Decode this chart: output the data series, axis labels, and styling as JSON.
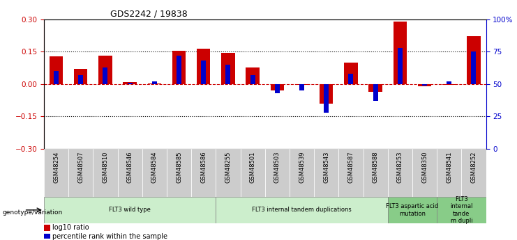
{
  "title": "GDS2242 / 19838",
  "samples": [
    "GSM48254",
    "GSM48507",
    "GSM48510",
    "GSM48546",
    "GSM48584",
    "GSM48585",
    "GSM48586",
    "GSM48255",
    "GSM48501",
    "GSM48503",
    "GSM48539",
    "GSM48543",
    "GSM48587",
    "GSM48588",
    "GSM48253",
    "GSM48350",
    "GSM48541",
    "GSM48252"
  ],
  "log10_ratio": [
    0.127,
    0.07,
    0.13,
    0.01,
    0.003,
    0.155,
    0.165,
    0.143,
    0.075,
    -0.03,
    -0.005,
    -0.09,
    0.1,
    -0.035,
    0.29,
    -0.01,
    -0.005,
    0.22
  ],
  "percentile_rank": [
    60,
    57,
    63,
    51,
    52,
    72,
    68,
    65,
    57,
    43,
    45,
    28,
    58,
    37,
    78,
    49,
    52,
    75
  ],
  "ylim_left": [
    -0.3,
    0.3
  ],
  "ylim_right": [
    0,
    100
  ],
  "yticks_left": [
    -0.3,
    -0.15,
    0.0,
    0.15,
    0.3
  ],
  "yticks_right": [
    0,
    25,
    50,
    75,
    100
  ],
  "ytick_labels_right": [
    "0",
    "25",
    "50",
    "75",
    "100%"
  ],
  "hline_vals": [
    0.15,
    -0.15
  ],
  "red_color": "#cc0000",
  "blue_color": "#0000cc",
  "groups": [
    {
      "label": "FLT3 wild type",
      "start": 0,
      "end": 6,
      "color": "#cceecc"
    },
    {
      "label": "FLT3 internal tandem duplications",
      "start": 7,
      "end": 13,
      "color": "#cceecc"
    },
    {
      "label": "FLT3 aspartic acid\nmutation",
      "start": 14,
      "end": 15,
      "color": "#88cc88"
    },
    {
      "label": "FLT3\ninternal\ntande\nm dupli",
      "start": 16,
      "end": 17,
      "color": "#88cc88"
    }
  ],
  "legend_red": "log10 ratio",
  "legend_blue": "percentile rank within the sample",
  "genotype_label": "genotype/variation"
}
